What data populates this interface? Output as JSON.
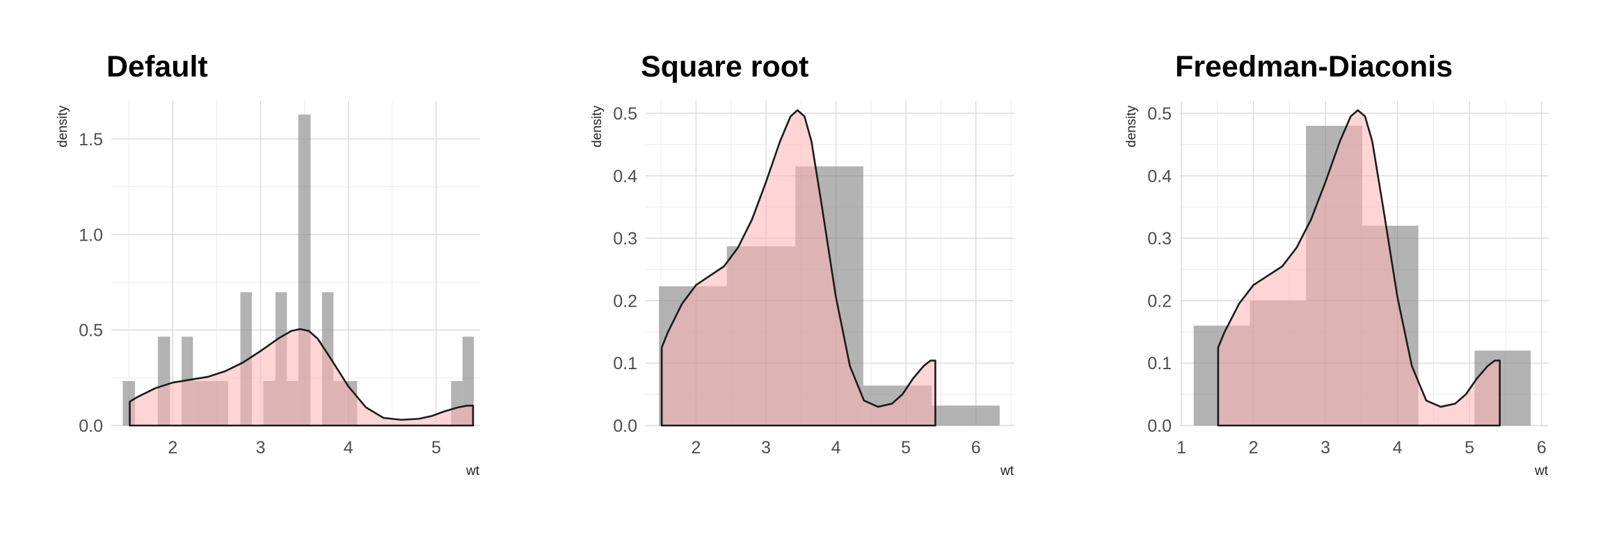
{
  "colors": {
    "background": "#ffffff",
    "grid_major": "#d9d9d9",
    "grid_minor": "#ebebeb",
    "hist_fill": "#808080",
    "density_fill": "#ffb3b3",
    "density_line": "#1a1a1a"
  },
  "chart_data": [
    {
      "type": "bar",
      "title": "Default",
      "xlabel": "wt",
      "ylabel": "density",
      "xlim": [
        1.3,
        5.5
      ],
      "ylim": [
        0,
        1.7
      ],
      "xticks": [
        2,
        3,
        4,
        5
      ],
      "xtick_labels": [
        "2",
        "3",
        "4",
        "5"
      ],
      "yticks": [
        0,
        0.5,
        1,
        1.5
      ],
      "ytick_labels": [
        "0.0",
        "0.5",
        "1.0",
        "1.5"
      ],
      "grid": true,
      "histogram": [
        {
          "x0": 1.43,
          "x1": 1.57,
          "y": 0.233
        },
        {
          "x0": 1.57,
          "x1": 1.7,
          "y": 0
        },
        {
          "x0": 1.7,
          "x1": 1.83,
          "y": 0
        },
        {
          "x0": 1.83,
          "x1": 1.97,
          "y": 0.465
        },
        {
          "x0": 1.97,
          "x1": 2.1,
          "y": 0
        },
        {
          "x0": 2.1,
          "x1": 2.23,
          "y": 0.465
        },
        {
          "x0": 2.23,
          "x1": 2.37,
          "y": 0.233
        },
        {
          "x0": 2.37,
          "x1": 2.5,
          "y": 0.233
        },
        {
          "x0": 2.5,
          "x1": 2.63,
          "y": 0.233
        },
        {
          "x0": 2.63,
          "x1": 2.77,
          "y": 0
        },
        {
          "x0": 2.77,
          "x1": 2.9,
          "y": 0.698
        },
        {
          "x0": 2.9,
          "x1": 3.03,
          "y": 0
        },
        {
          "x0": 3.03,
          "x1": 3.17,
          "y": 0.233
        },
        {
          "x0": 3.17,
          "x1": 3.3,
          "y": 0.698
        },
        {
          "x0": 3.3,
          "x1": 3.43,
          "y": 0.233
        },
        {
          "x0": 3.43,
          "x1": 3.57,
          "y": 1.628
        },
        {
          "x0": 3.57,
          "x1": 3.7,
          "y": 0
        },
        {
          "x0": 3.7,
          "x1": 3.83,
          "y": 0.698
        },
        {
          "x0": 3.83,
          "x1": 3.97,
          "y": 0.233
        },
        {
          "x0": 3.97,
          "x1": 4.1,
          "y": 0.233
        },
        {
          "x0": 4.1,
          "x1": 5.17,
          "y": 0
        },
        {
          "x0": 5.17,
          "x1": 5.3,
          "y": 0.233
        },
        {
          "x0": 5.3,
          "x1": 5.43,
          "y": 0.465
        }
      ],
      "density": {
        "x": [
          1.51,
          1.6,
          1.8,
          2.0,
          2.2,
          2.4,
          2.6,
          2.8,
          3.0,
          3.2,
          3.35,
          3.45,
          3.55,
          3.65,
          3.8,
          4.0,
          4.2,
          4.4,
          4.6,
          4.8,
          4.95,
          5.1,
          5.25,
          5.35,
          5.42
        ],
        "y": [
          0.125,
          0.15,
          0.195,
          0.225,
          0.24,
          0.255,
          0.285,
          0.33,
          0.39,
          0.455,
          0.495,
          0.505,
          0.495,
          0.455,
          0.35,
          0.205,
          0.095,
          0.04,
          0.03,
          0.035,
          0.05,
          0.075,
          0.095,
          0.104,
          0.104
        ]
      }
    },
    {
      "type": "bar",
      "title": "Square root",
      "xlabel": "wt",
      "ylabel": "density",
      "xlim": [
        1.28,
        6.55
      ],
      "ylim": [
        0,
        0.52
      ],
      "xticks": [
        2,
        3,
        4,
        5,
        6
      ],
      "xtick_labels": [
        "2",
        "3",
        "4",
        "5",
        "6"
      ],
      "yticks": [
        0,
        0.1,
        0.2,
        0.3,
        0.4,
        0.5
      ],
      "ytick_labels": [
        "0.0",
        "0.1",
        "0.2",
        "0.3",
        "0.4",
        "0.5"
      ],
      "grid": true,
      "histogram": [
        {
          "x0": 1.47,
          "x1": 2.44,
          "y": 0.223
        },
        {
          "x0": 2.44,
          "x1": 3.42,
          "y": 0.287
        },
        {
          "x0": 3.42,
          "x1": 4.39,
          "y": 0.415
        },
        {
          "x0": 4.39,
          "x1": 5.37,
          "y": 0.064
        },
        {
          "x0": 5.37,
          "x1": 6.34,
          "y": 0.032
        }
      ],
      "density": {
        "x": [
          1.51,
          1.6,
          1.8,
          2.0,
          2.2,
          2.4,
          2.6,
          2.8,
          3.0,
          3.2,
          3.35,
          3.45,
          3.55,
          3.65,
          3.8,
          4.0,
          4.2,
          4.4,
          4.6,
          4.8,
          4.95,
          5.1,
          5.25,
          5.35,
          5.42
        ],
        "y": [
          0.125,
          0.15,
          0.195,
          0.225,
          0.24,
          0.255,
          0.285,
          0.33,
          0.39,
          0.455,
          0.495,
          0.505,
          0.495,
          0.455,
          0.35,
          0.205,
          0.095,
          0.04,
          0.03,
          0.035,
          0.05,
          0.075,
          0.095,
          0.104,
          0.104
        ]
      }
    },
    {
      "type": "bar",
      "title": "Freedman-Diaconis",
      "xlabel": "wt",
      "ylabel": "density",
      "xlim": [
        0.98,
        6.1
      ],
      "ylim": [
        0,
        0.52
      ],
      "xticks": [
        1,
        2,
        3,
        4,
        5,
        6
      ],
      "xtick_labels": [
        "1",
        "2",
        "3",
        "4",
        "5",
        "6"
      ],
      "yticks": [
        0,
        0.1,
        0.2,
        0.3,
        0.4,
        0.5
      ],
      "ytick_labels": [
        "0.0",
        "0.1",
        "0.2",
        "0.3",
        "0.4",
        "0.5"
      ],
      "grid": true,
      "histogram": [
        {
          "x0": 1.17,
          "x1": 1.95,
          "y": 0.16
        },
        {
          "x0": 1.95,
          "x1": 2.73,
          "y": 0.2
        },
        {
          "x0": 2.73,
          "x1": 3.51,
          "y": 0.48
        },
        {
          "x0": 3.51,
          "x1": 4.29,
          "y": 0.32
        },
        {
          "x0": 4.29,
          "x1": 5.07,
          "y": 0
        },
        {
          "x0": 5.07,
          "x1": 5.85,
          "y": 0.12
        }
      ],
      "density": {
        "x": [
          1.51,
          1.6,
          1.8,
          2.0,
          2.2,
          2.4,
          2.6,
          2.8,
          3.0,
          3.2,
          3.35,
          3.45,
          3.55,
          3.65,
          3.8,
          4.0,
          4.2,
          4.4,
          4.6,
          4.8,
          4.95,
          5.1,
          5.25,
          5.35,
          5.42
        ],
        "y": [
          0.125,
          0.15,
          0.195,
          0.225,
          0.24,
          0.255,
          0.285,
          0.33,
          0.39,
          0.455,
          0.495,
          0.505,
          0.495,
          0.455,
          0.35,
          0.205,
          0.095,
          0.04,
          0.03,
          0.035,
          0.05,
          0.075,
          0.095,
          0.104,
          0.104
        ]
      }
    }
  ]
}
